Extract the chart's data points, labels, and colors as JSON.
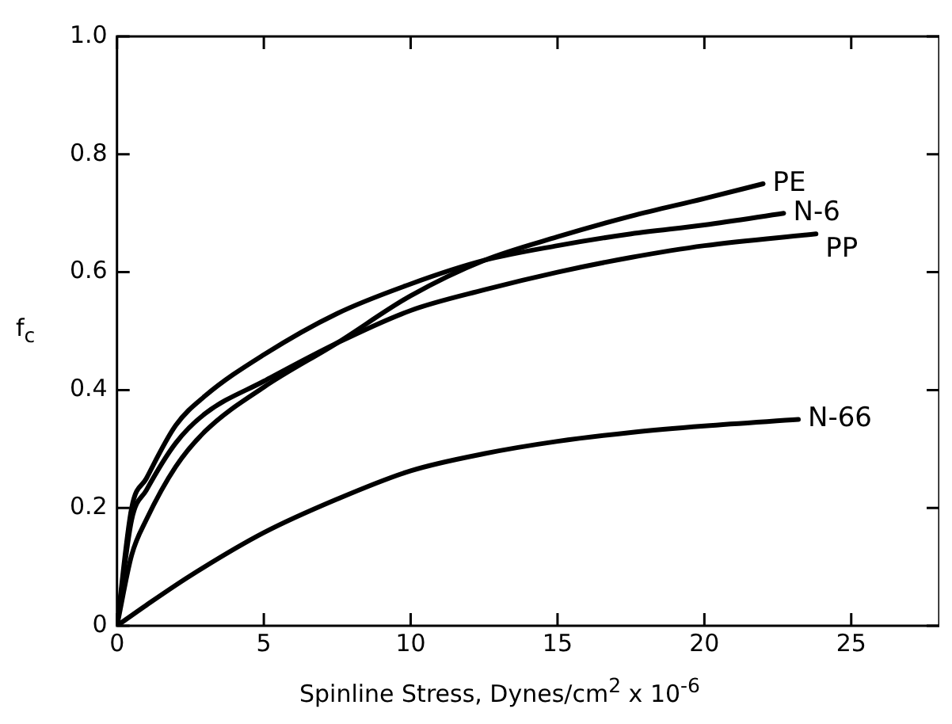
{
  "chart_data": {
    "type": "line",
    "xlabel": "Spinline Stress, Dynes/cm$^{2}$ x 10$^{-6}$",
    "ylabel": "f$_{c}$",
    "xlim": [
      0,
      28
    ],
    "xticks": [
      0,
      5,
      10,
      15,
      20,
      25
    ],
    "ylim": [
      0,
      1
    ],
    "yticks": [
      0,
      0.2,
      0.4,
      0.6,
      0.8,
      {
        "value": 1,
        "label": "1.0"
      }
    ],
    "grid": false,
    "legend": false,
    "marker": "none",
    "line_style": "solid",
    "series": [
      {
        "name": "PE",
        "color": "#000000",
        "x": [
          0,
          0.5,
          1,
          2,
          3,
          5,
          7.5,
          10,
          12.5,
          15,
          17.5,
          20,
          22
        ],
        "values": [
          0,
          0.12,
          0.18,
          0.27,
          0.33,
          0.405,
          0.48,
          0.56,
          0.62,
          0.66,
          0.695,
          0.725,
          0.75
        ]
      },
      {
        "name": "N-6",
        "color": "#000000",
        "x": [
          0,
          0.5,
          1,
          2,
          3,
          5,
          7.5,
          10,
          12.5,
          15,
          17.5,
          20,
          22.7
        ],
        "values": [
          0,
          0.2,
          0.25,
          0.34,
          0.39,
          0.46,
          0.53,
          0.58,
          0.62,
          0.645,
          0.665,
          0.68,
          0.7
        ]
      },
      {
        "name": "PP",
        "color": "#000000",
        "x": [
          0,
          0.5,
          1,
          2,
          3,
          5,
          7.5,
          10,
          12.5,
          15,
          17.5,
          20,
          23.8
        ],
        "values": [
          0,
          0.18,
          0.23,
          0.31,
          0.36,
          0.415,
          0.48,
          0.535,
          0.57,
          0.6,
          0.625,
          0.645,
          0.665
        ]
      },
      {
        "name": "N-66",
        "color": "#000000",
        "x": [
          0,
          1,
          2.5,
          5,
          7.5,
          10,
          12.5,
          15,
          17.5,
          20,
          23.2
        ],
        "values": [
          0,
          0.035,
          0.085,
          0.158,
          0.215,
          0.263,
          0.292,
          0.313,
          0.328,
          0.339,
          0.35
        ]
      }
    ]
  }
}
